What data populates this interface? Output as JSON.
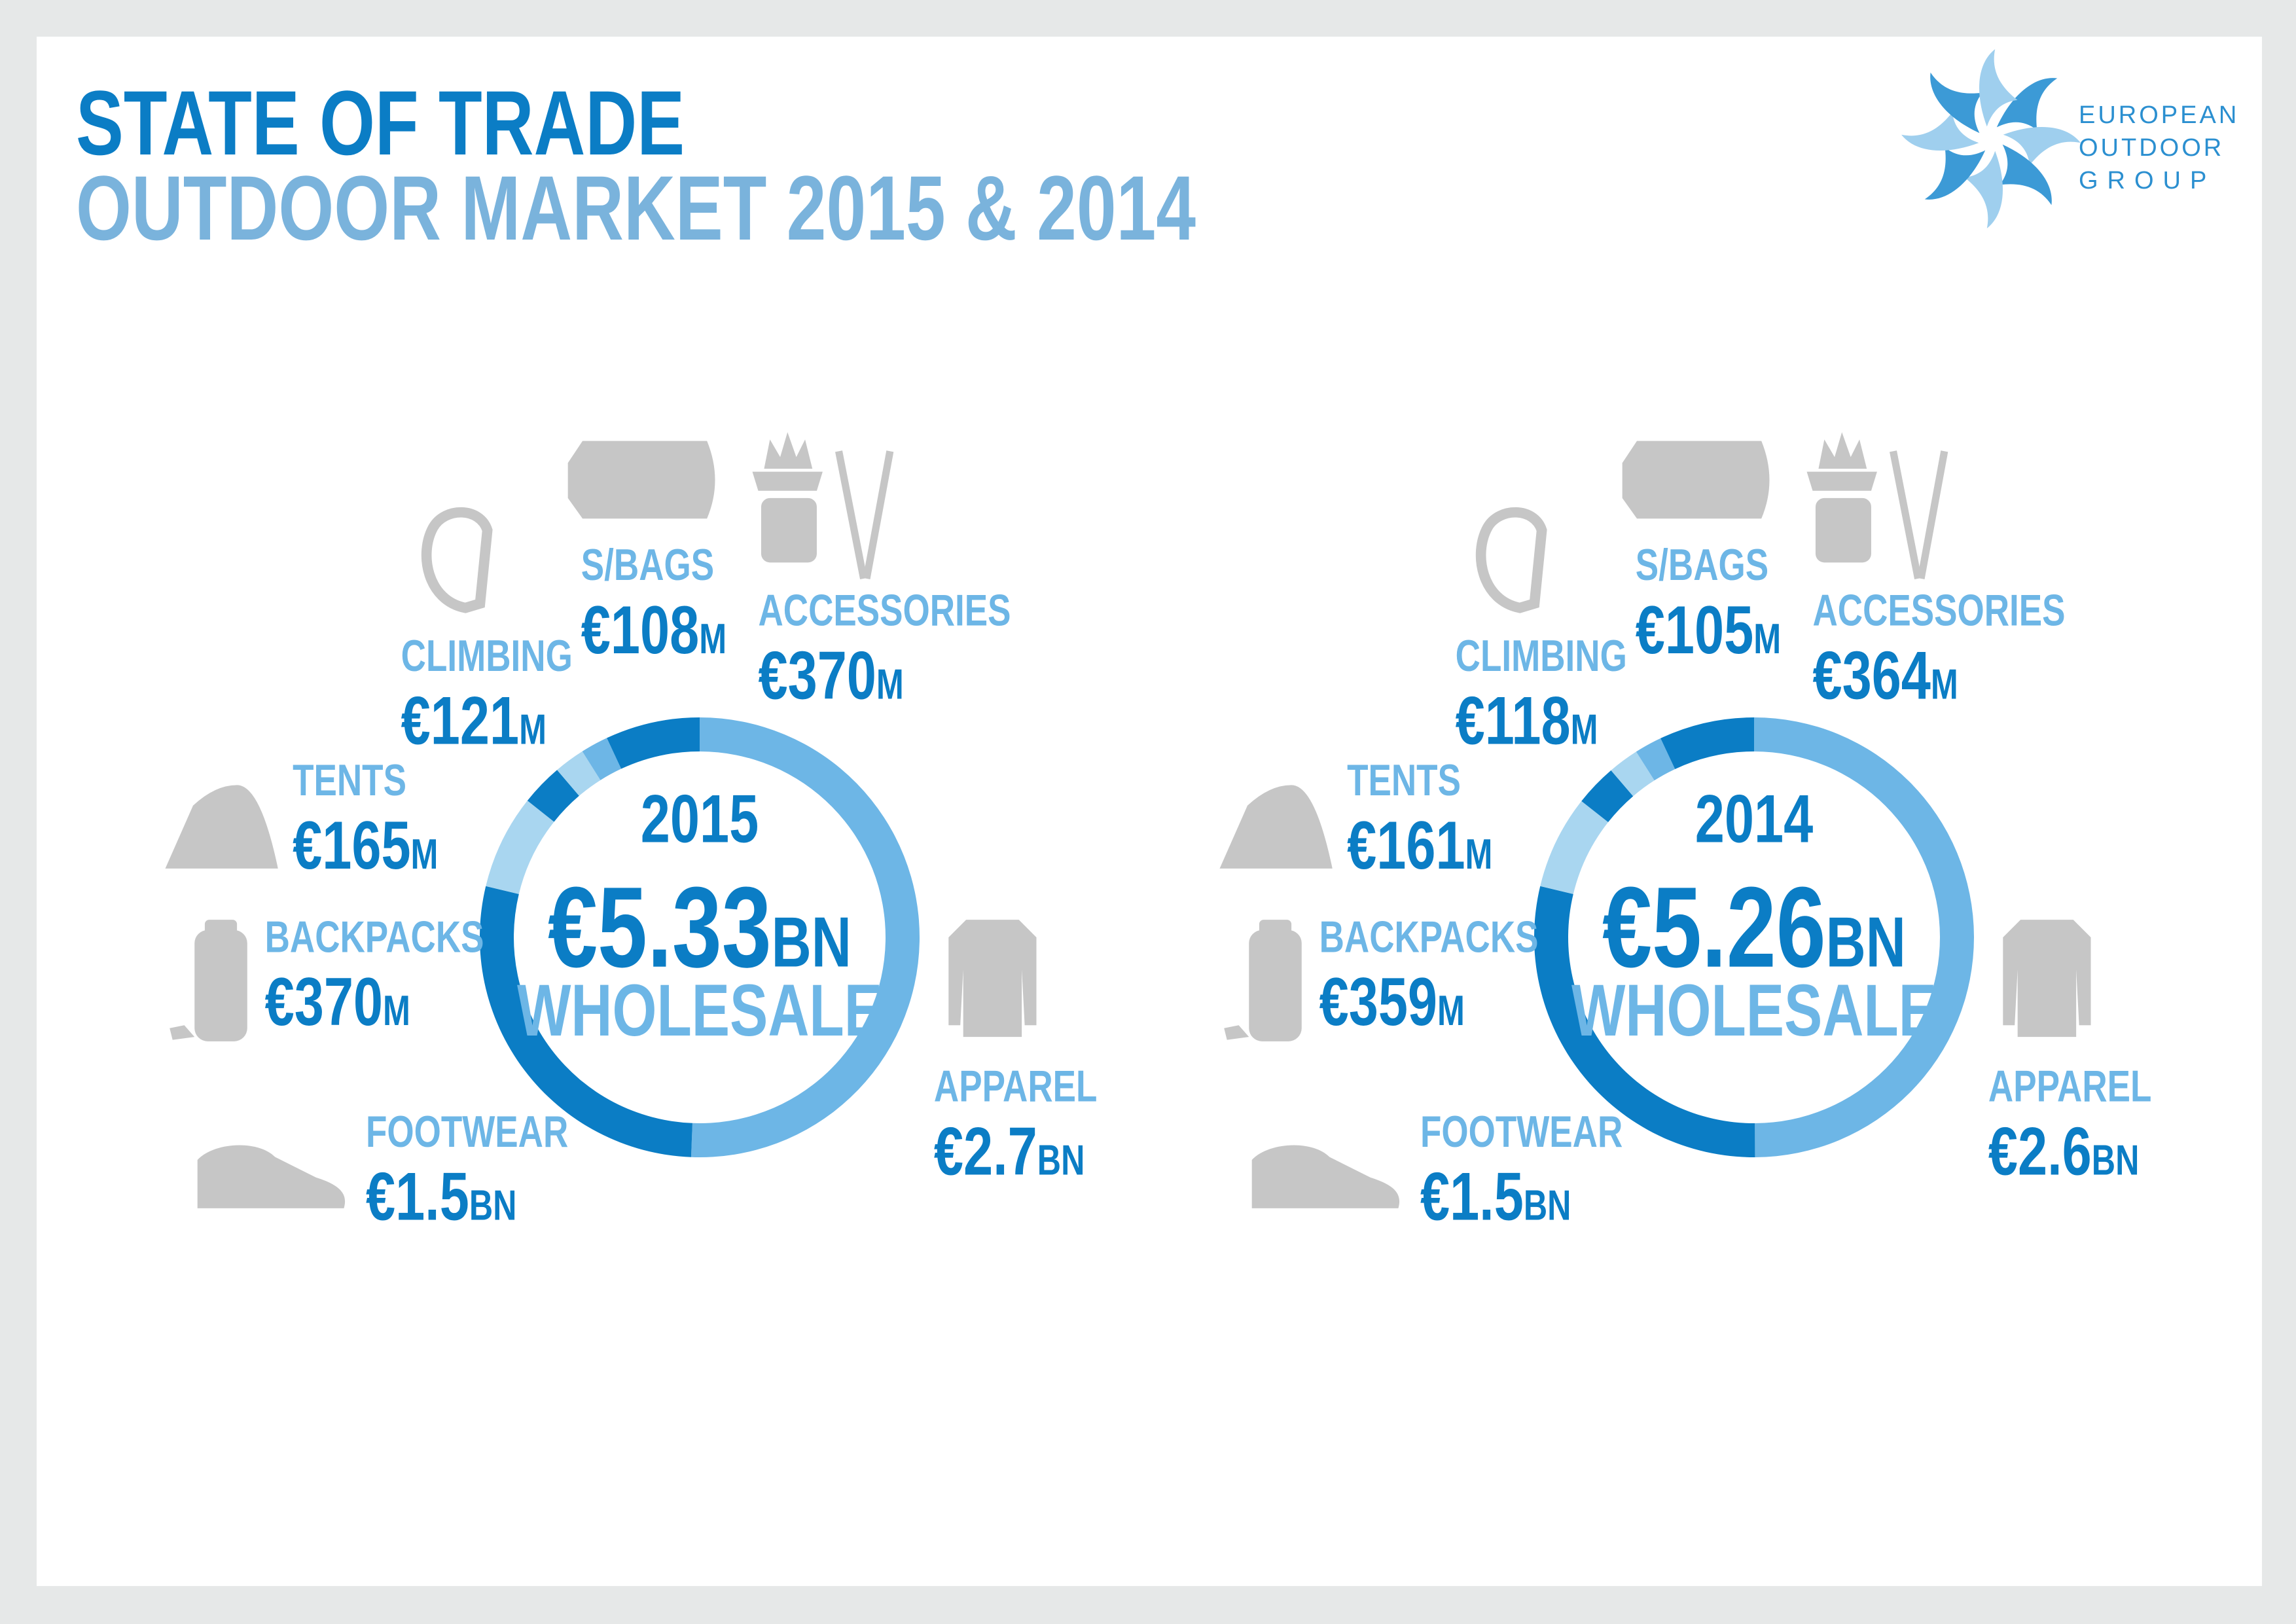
{
  "title": "STATE OF TRADE",
  "subtitle": "OUTDOOR MARKET 2015 & 2014",
  "logo": {
    "lines": [
      "EUROPEAN",
      "OUTDOOR",
      "GROUP"
    ]
  },
  "chart_data": [
    {
      "type": "pie",
      "title": "2015",
      "total_label": "€5.33BN",
      "caption": "WHOLESALE",
      "categories": [
        "APPAREL",
        "FOOTWEAR",
        "BACKPACKS",
        "TENTS",
        "CLIMBING",
        "S/BAGS",
        "ACCESSORIES"
      ],
      "values": [
        2700,
        1500,
        370,
        165,
        121,
        108,
        370
      ],
      "value_labels": [
        "€2.7BN",
        "€1.5BN",
        "€370M",
        "€165M",
        "€121M",
        "€108M",
        "€370M"
      ],
      "colors": [
        "#6db6e6",
        "#0b7dc5",
        "#a9d6f0",
        "#0b7dc5",
        "#a9d6f0",
        "#6db6e6",
        "#0b7dc5"
      ]
    },
    {
      "type": "pie",
      "title": "2014",
      "total_label": "€5.26BN",
      "caption": "WHOLESALE",
      "categories": [
        "APPAREL",
        "FOOTWEAR",
        "BACKPACKS",
        "TENTS",
        "CLIMBING",
        "S/BAGS",
        "ACCESSORIES"
      ],
      "values": [
        2600,
        1500,
        359,
        161,
        118,
        105,
        364
      ],
      "value_labels": [
        "€2.6BN",
        "€1.5BN",
        "€359M",
        "€161M",
        "€118M",
        "€105M",
        "€364M"
      ],
      "colors": [
        "#6db6e6",
        "#0b7dc5",
        "#a9d6f0",
        "#0b7dc5",
        "#a9d6f0",
        "#6db6e6",
        "#0b7dc5"
      ]
    }
  ]
}
